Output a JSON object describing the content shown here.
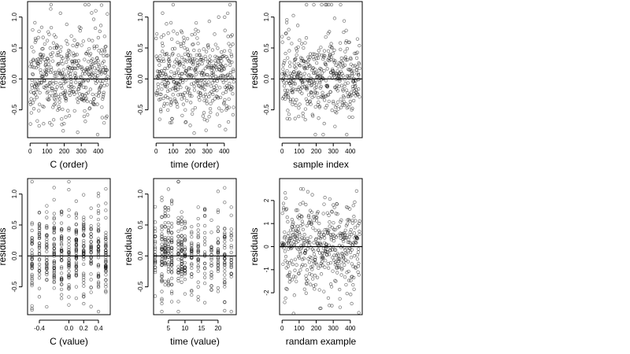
{
  "chart_data": [
    {
      "type": "scatter",
      "xlabel": "C (order)",
      "ylabel": "residuals",
      "xlim": [
        -15,
        470
      ],
      "ylim": [
        -0.95,
        1.25
      ],
      "xticks": [
        0,
        100,
        200,
        300,
        400
      ],
      "yticks": [
        -0.5,
        0.0,
        0.5,
        1.0
      ],
      "ytick_labels": [
        "-0.5",
        "0.0",
        "0.5",
        "1.0"
      ],
      "reference_line": 0,
      "generator": {
        "kind": "order",
        "n": 456,
        "seed": 11,
        "sd": 0.33,
        "skew": true
      }
    },
    {
      "type": "scatter",
      "xlabel": "time (order)",
      "ylabel": "residuals",
      "xlim": [
        -15,
        470
      ],
      "ylim": [
        -0.95,
        1.25
      ],
      "xticks": [
        0,
        100,
        200,
        300,
        400
      ],
      "yticks": [
        -0.5,
        0.0,
        0.5,
        1.0
      ],
      "ytick_labels": [
        "-0.5",
        "0.0",
        "0.5",
        "1.0"
      ],
      "reference_line": 0,
      "generator": {
        "kind": "order",
        "n": 456,
        "seed": 23,
        "sd": 0.33,
        "skew": true
      }
    },
    {
      "type": "scatter",
      "xlabel": "sample index",
      "ylabel": "residuals",
      "xlim": [
        -15,
        470
      ],
      "ylim": [
        -0.95,
        1.25
      ],
      "xticks": [
        0,
        100,
        200,
        300,
        400
      ],
      "yticks": [
        -0.5,
        0.0,
        0.5,
        1.0
      ],
      "ytick_labels": [
        "-0.5",
        "0.0",
        "0.5",
        "1.0"
      ],
      "reference_line": 0,
      "generator": {
        "kind": "order",
        "n": 456,
        "seed": 37,
        "sd": 0.33,
        "skew": true
      }
    },
    {
      "type": "scatter",
      "xlabel": "C (value)",
      "ylabel": "residuals",
      "xlim": [
        -0.56,
        0.56
      ],
      "ylim": [
        -0.95,
        1.25
      ],
      "xticks": [
        -0.4,
        0.0,
        0.2,
        0.4
      ],
      "xtick_labels": [
        "-0.4",
        "0.0",
        "0.2",
        "0.4"
      ],
      "yticks": [
        -0.5,
        0.0,
        0.5,
        1.0
      ],
      "ytick_labels": [
        "-0.5",
        "0.0",
        "0.5",
        "1.0"
      ],
      "reference_line": 0,
      "x_levels": [
        -0.5,
        -0.4,
        -0.3,
        -0.2,
        -0.1,
        0.0,
        0.1,
        0.2,
        0.3,
        0.4,
        0.5
      ],
      "generator": {
        "kind": "levels",
        "n": 456,
        "seed": 51,
        "sd": 0.33,
        "skew": true
      }
    },
    {
      "type": "scatter",
      "xlabel": "time (value)",
      "ylabel": "residuals",
      "xlim": [
        0.5,
        25.5
      ],
      "ylim": [
        -0.95,
        1.25
      ],
      "xticks": [
        5,
        10,
        15,
        20
      ],
      "yticks": [
        -0.5,
        0.0,
        0.5,
        1.0
      ],
      "ytick_labels": [
        "-0.5",
        "0.0",
        "0.5",
        "1.0"
      ],
      "reference_line": 0,
      "x_levels": [
        1,
        3,
        4,
        5,
        6,
        8,
        9,
        10,
        12,
        14,
        16,
        18,
        20,
        22,
        24
      ],
      "generator": {
        "kind": "levels",
        "n": 456,
        "seed": 67,
        "sd": 0.33,
        "skew": true
      }
    },
    {
      "type": "scatter",
      "xlabel": "randam example",
      "ylabel": "residuals",
      "xlim": [
        -15,
        470
      ],
      "ylim": [
        -2.95,
        2.95
      ],
      "xticks": [
        0,
        100,
        200,
        300,
        400
      ],
      "yticks": [
        -2,
        -1,
        0,
        1,
        2
      ],
      "ytick_labels": [
        "-2",
        "-1",
        "0",
        "1",
        "2"
      ],
      "reference_line": 0,
      "generator": {
        "kind": "order",
        "n": 456,
        "seed": 89,
        "sd": 1.0,
        "skew": false
      }
    }
  ]
}
